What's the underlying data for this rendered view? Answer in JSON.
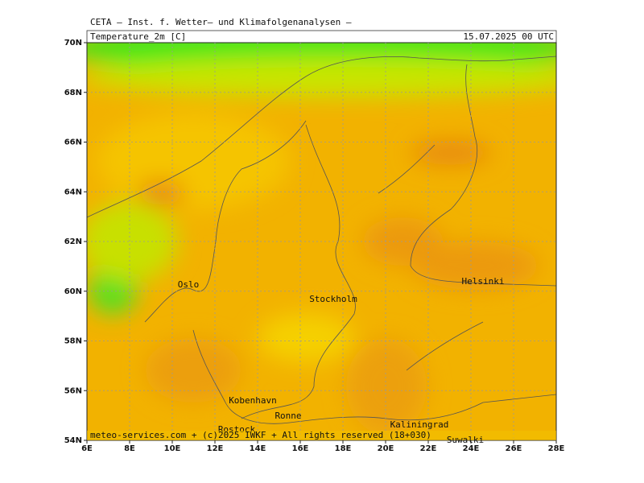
{
  "header": {
    "source": "CETA – Inst. f. Wetter– und Klimafolgenanalysen –",
    "variable": "Temperature_2m [C]",
    "datetime": "15.07.2025 00 UTC"
  },
  "axes": {
    "lat_labels": [
      "70N",
      "68N",
      "66N",
      "64N",
      "62N",
      "60N",
      "58N",
      "56N",
      "54N"
    ],
    "lon_labels": [
      "6E",
      "8E",
      "10E",
      "12E",
      "14E",
      "16E",
      "18E",
      "20E",
      "22E",
      "24E",
      "26E",
      "28E"
    ]
  },
  "cities": [
    "Oslo",
    "Stockholm",
    "Helsinki",
    "Kobenhavn",
    "Ronne",
    "Rostock",
    "Kaliningrad",
    "Suwalki"
  ],
  "footer": "meteo-services.com + (c)2025 IWKF + All rights reserved (18+030)"
}
